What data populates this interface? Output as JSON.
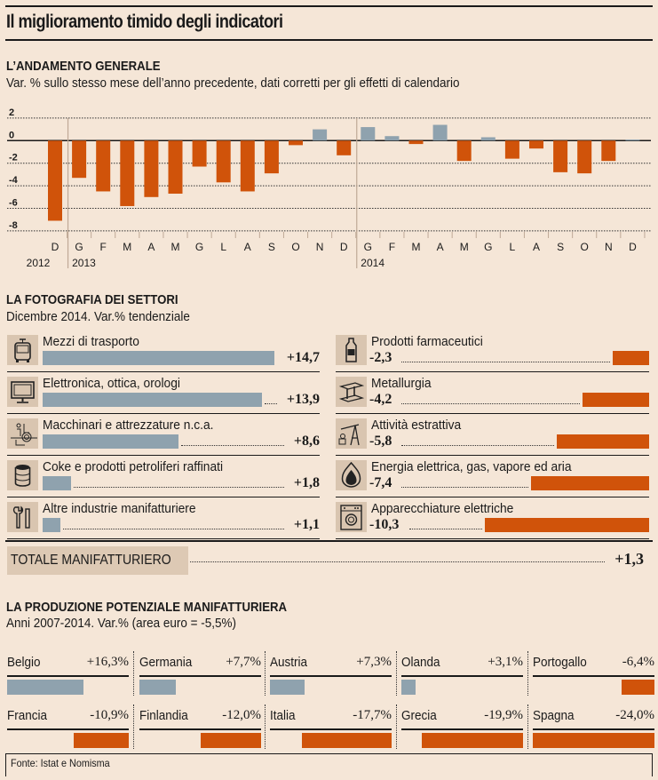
{
  "title": "Il miglioramento timido degli indicatori",
  "section1": {
    "heading": "L’ANDAMENTO GENERALE",
    "subtitle": "Var. % sullo stesso mese dell’anno precedente, dati corretti per gli effetti di calendario"
  },
  "section2": {
    "heading": "LA FOTOGRAFIA DEI SETTORI",
    "subtitle": "Dicembre 2014. Var.% tendenziale",
    "total_label": "TOTALE MANIFATTURIERO",
    "total_value": "+1,3"
  },
  "section3": {
    "heading": "LA PRODUZIONE POTENZIALE MANIFATTURIERA",
    "subtitle": "Anni 2007-2014. Var.% (area euro = -5,5%)"
  },
  "source": "Fonte: Istat e Nomisma",
  "colors": {
    "positive": "#8fa2ae",
    "negative": "#d0530a",
    "background": "#f5e6d7"
  },
  "chart_data": [
    {
      "type": "bar",
      "title": "L’ANDAMENTO GENERALE",
      "subtitle": "Var. % sullo stesso mese dell’anno precedente, dati corretti per gli effetti di calendario",
      "categories": [
        "D",
        "G",
        "F",
        "M",
        "A",
        "M",
        "G",
        "L",
        "A",
        "S",
        "O",
        "N",
        "D",
        "G",
        "F",
        "M",
        "A",
        "M",
        "G",
        "L",
        "A",
        "S",
        "O",
        "N",
        "D"
      ],
      "year_labels": [
        {
          "year": "2012",
          "start_index": 0
        },
        {
          "year": "2013",
          "start_index": 1
        },
        {
          "year": "2014",
          "start_index": 13
        }
      ],
      "values": [
        -7.1,
        -3.3,
        -4.5,
        -5.8,
        -5.0,
        -4.7,
        -2.3,
        -3.7,
        -4.5,
        -2.9,
        -0.4,
        1.0,
        -1.3,
        1.2,
        0.4,
        -0.3,
        1.4,
        -1.8,
        0.3,
        -1.6,
        -0.7,
        -2.8,
        -2.9,
        -1.8,
        0.1
      ],
      "yticks": [
        "2",
        "0",
        "-2",
        "-4",
        "-6",
        "-8"
      ],
      "ytick_values": [
        2,
        0,
        -2,
        -4,
        -6,
        -8
      ],
      "ylim": [
        -8,
        2
      ],
      "grid": true,
      "xlabel": "",
      "ylabel": ""
    },
    {
      "type": "bar",
      "title": "LA FOTOGRAFIA DEI SETTORI",
      "subtitle": "Dicembre 2014. Var.% tendenziale",
      "positive": [
        {
          "icon": "bus-icon",
          "label": "Mezzi di trasporto",
          "value": 14.7,
          "display": "+14,7"
        },
        {
          "icon": "monitor-icon",
          "label": "Elettronica, ottica, orologi",
          "value": 13.9,
          "display": "+13,9"
        },
        {
          "icon": "machinery-icon",
          "label": "Macchinari e attrezzature n.c.a.",
          "value": 8.6,
          "display": "+8,6"
        },
        {
          "icon": "barrel-icon",
          "label": "Coke e prodotti petroliferi raffinati",
          "value": 1.8,
          "display": "+1,8"
        },
        {
          "icon": "wrench-icon",
          "label": "Altre industrie manifatturiere",
          "value": 1.1,
          "display": "+1,1"
        }
      ],
      "negative": [
        {
          "icon": "medicine-bottle-icon",
          "label": "Prodotti farmaceutici",
          "value": -2.3,
          "display": "-2,3"
        },
        {
          "icon": "steel-beam-icon",
          "label": "Metallurgia",
          "value": -4.2,
          "display": "-4,2"
        },
        {
          "icon": "oil-pump-icon",
          "label": "Attività estrattiva",
          "value": -5.8,
          "display": "-5,8"
        },
        {
          "icon": "flame-icon",
          "label": "Energia elettrica, gas, vapore ed aria",
          "value": -7.4,
          "display": "-7,4"
        },
        {
          "icon": "washing-machine-icon",
          "label": "Apparecchiature elettriche",
          "value": -10.3,
          "display": "-10,3"
        }
      ],
      "total": {
        "label": "TOTALE MANIFATTURIERO",
        "value": 1.3,
        "display": "+1,3"
      }
    },
    {
      "type": "bar",
      "title": "LA PRODUZIONE POTENZIALE MANIFATTURIERA",
      "subtitle": "Anni 2007-2014. Var.% (area euro = -5,5%)",
      "categories": [
        "Belgio",
        "Germania",
        "Austria",
        "Olanda",
        "Portogallo",
        "Francia",
        "Finlandia",
        "Italia",
        "Grecia",
        "Spagna"
      ],
      "values": [
        16.3,
        7.7,
        7.3,
        3.1,
        -6.4,
        -10.9,
        -12.0,
        -17.7,
        -19.9,
        -24.0
      ],
      "display": [
        "+16,3%",
        "+7,7%",
        "+7,3%",
        "+3,1%",
        "-6,4%",
        "-10,9%",
        "-12,0%",
        "-17,7%",
        "-19,9%",
        "-24,0%"
      ]
    }
  ]
}
